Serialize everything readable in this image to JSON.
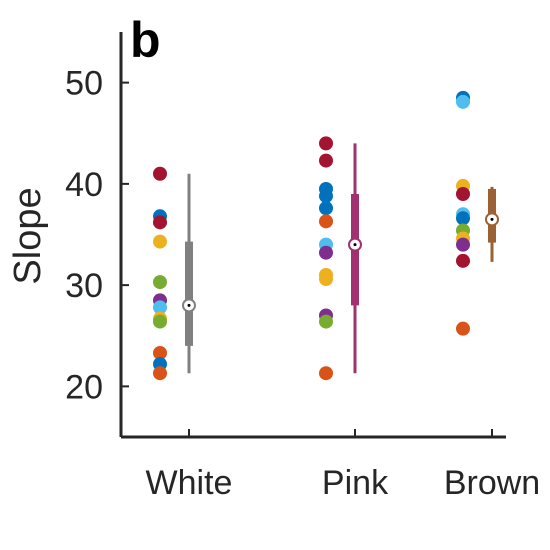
{
  "panel_label": "b",
  "colors": {
    "axis": "#262626",
    "point_palette": {
      "red": "#a2142f",
      "blue": "#0072bd",
      "lightblue": "#4dbeee",
      "orange": "#d95319",
      "yellow": "#edb120",
      "green": "#77ac30",
      "purple": "#7e2f8e"
    }
  },
  "chart_data": {
    "type": "scatter",
    "subtype": "strip plot with box summary",
    "title": "",
    "xlabel": "",
    "ylabel": "Slope",
    "ylim": [
      15,
      55
    ],
    "yticks": [
      20,
      30,
      40,
      50
    ],
    "grid": false,
    "categories": [
      "White",
      "Pink",
      "Brown"
    ],
    "groups": [
      {
        "name": "White",
        "box_color": "#808080",
        "points": [
          {
            "y": 41.0,
            "color": "red"
          },
          {
            "y": 36.8,
            "color": "blue"
          },
          {
            "y": 36.2,
            "color": "red"
          },
          {
            "y": 34.3,
            "color": "yellow"
          },
          {
            "y": 30.3,
            "color": "green"
          },
          {
            "y": 28.5,
            "color": "purple"
          },
          {
            "y": 27.8,
            "color": "lightblue"
          },
          {
            "y": 26.7,
            "color": "yellow"
          },
          {
            "y": 26.4,
            "color": "green"
          },
          {
            "y": 23.3,
            "color": "orange"
          },
          {
            "y": 22.2,
            "color": "blue"
          },
          {
            "y": 21.3,
            "color": "orange"
          }
        ],
        "median": 28.0,
        "q1": 24.0,
        "q3": 34.3,
        "whisker_low": 21.3,
        "whisker_high": 41.0
      },
      {
        "name": "Pink",
        "box_color": "#a2316f",
        "points": [
          {
            "y": 44.0,
            "color": "red"
          },
          {
            "y": 42.3,
            "color": "red"
          },
          {
            "y": 39.5,
            "color": "blue"
          },
          {
            "y": 38.8,
            "color": "blue"
          },
          {
            "y": 37.6,
            "color": "blue"
          },
          {
            "y": 36.3,
            "color": "orange"
          },
          {
            "y": 34.0,
            "color": "lightblue"
          },
          {
            "y": 33.2,
            "color": "purple"
          },
          {
            "y": 31.0,
            "color": "yellow"
          },
          {
            "y": 30.6,
            "color": "yellow"
          },
          {
            "y": 27.0,
            "color": "purple"
          },
          {
            "y": 26.4,
            "color": "green"
          },
          {
            "y": 21.3,
            "color": "orange"
          }
        ],
        "median": 34.0,
        "q1": 28.0,
        "q3": 39.0,
        "whisker_low": 21.3,
        "whisker_high": 44.0
      },
      {
        "name": "Brown",
        "box_color": "#9c6035",
        "points": [
          {
            "y": 48.5,
            "color": "blue"
          },
          {
            "y": 48.1,
            "color": "lightblue"
          },
          {
            "y": 39.8,
            "color": "yellow"
          },
          {
            "y": 39.0,
            "color": "red"
          },
          {
            "y": 37.0,
            "color": "lightblue"
          },
          {
            "y": 36.6,
            "color": "blue"
          },
          {
            "y": 35.4,
            "color": "green"
          },
          {
            "y": 34.6,
            "color": "yellow"
          },
          {
            "y": 34.0,
            "color": "purple"
          },
          {
            "y": 32.4,
            "color": "red"
          },
          {
            "y": 25.7,
            "color": "orange"
          }
        ],
        "median": 36.5,
        "q1": 34.2,
        "q3": 39.5,
        "whisker_low": 32.3,
        "whisker_high": 39.7
      }
    ]
  }
}
